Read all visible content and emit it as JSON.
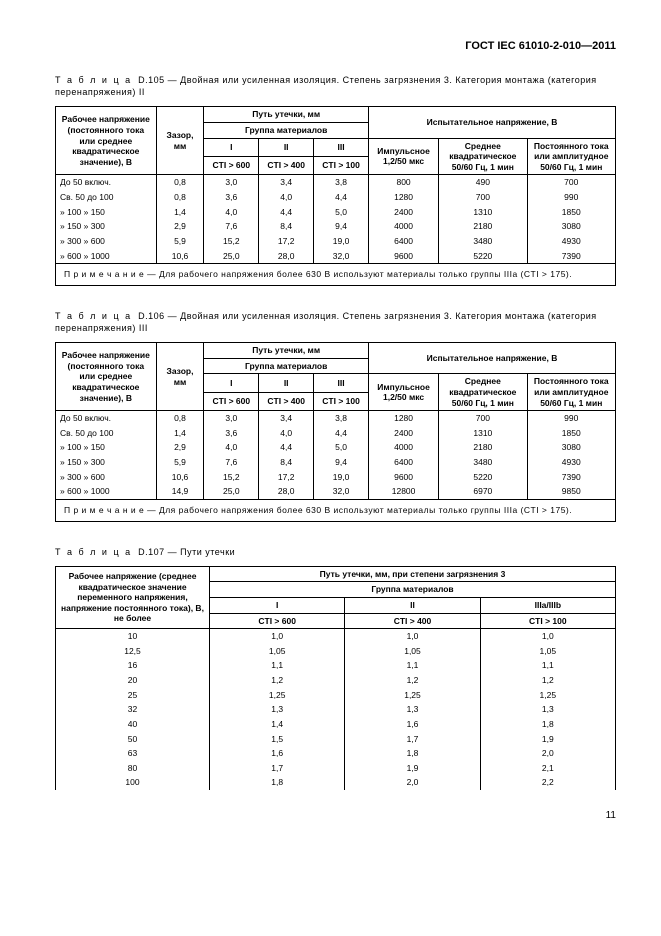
{
  "header": "ГОСТ IEC 61010-2-010—2011",
  "page_number": "11",
  "tables": {
    "d105": {
      "caption_prefix": "Т а б л и ц а",
      "caption_num": "D.105",
      "caption_text": "— Двойная или усиленная изоляция. Степень загрязнения 3. Категория монтажа (категория перенапряжения) II",
      "col_voltage": "Рабочее напряжение (постоянного тока или среднее квадратическое значение), В",
      "col_gap": "Зазор, мм",
      "col_creep": "Путь утечки, мм",
      "col_matgroup": "Группа материалов",
      "col_test": "Испытательное напряжение, В",
      "col_I": "I",
      "col_II": "II",
      "col_III": "III",
      "col_cti600": "CTI > 600",
      "col_cti400": "CTI > 400",
      "col_cti100": "CTI > 100",
      "col_impulse": "Импульсное 1,2/50 мкс",
      "col_rms": "Среднее квадратическое 50/60 Гц, 1 мин",
      "col_dc": "Постоянного тока или амплитудное 50/60 Гц, 1 мин",
      "rows": [
        {
          "v": "До  50 включ.",
          "g": "0,8",
          "c1": "3,0",
          "c2": "3,4",
          "c3": "3,8",
          "imp": "800",
          "rms": "490",
          "dc": "700"
        },
        {
          "v": "Св. 50 до 100",
          "g": "0,8",
          "c1": "3,6",
          "c2": "4,0",
          "c3": "4,4",
          "imp": "1280",
          "rms": "700",
          "dc": "990"
        },
        {
          "v": "» 100   »   150",
          "g": "1,4",
          "c1": "4,0",
          "c2": "4,4",
          "c3": "5,0",
          "imp": "2400",
          "rms": "1310",
          "dc": "1850"
        },
        {
          "v": "» 150   »   300",
          "g": "2,9",
          "c1": "7,6",
          "c2": "8,4",
          "c3": "9,4",
          "imp": "4000",
          "rms": "2180",
          "dc": "3080"
        },
        {
          "v": "» 300   »   600",
          "g": "5,9",
          "c1": "15,2",
          "c2": "17,2",
          "c3": "19,0",
          "imp": "6400",
          "rms": "3480",
          "dc": "4930"
        },
        {
          "v": "» 600   » 1000",
          "g": "10,6",
          "c1": "25,0",
          "c2": "28,0",
          "c3": "32,0",
          "imp": "9600",
          "rms": "5220",
          "dc": "7390"
        }
      ],
      "note": "П р и м е ч а н и е — Для рабочего напряжения более 630 В используют материалы только группы IIIa (CTI > 175)."
    },
    "d106": {
      "caption_prefix": "Т а б л и ц а",
      "caption_num": "D.106",
      "caption_text": "— Двойная или усиленная изоляция. Степень загрязнения 3. Категория монтажа (категория перенапряжения) III",
      "rows": [
        {
          "v": "До  50 включ.",
          "g": "0,8",
          "c1": "3,0",
          "c2": "3,4",
          "c3": "3,8",
          "imp": "1280",
          "rms": "700",
          "dc": "990"
        },
        {
          "v": "Св. 50 до 100",
          "g": "1,4",
          "c1": "3,6",
          "c2": "4,0",
          "c3": "4,4",
          "imp": "2400",
          "rms": "1310",
          "dc": "1850"
        },
        {
          "v": "» 100   »   150",
          "g": "2,9",
          "c1": "4,0",
          "c2": "4,4",
          "c3": "5,0",
          "imp": "4000",
          "rms": "2180",
          "dc": "3080"
        },
        {
          "v": "» 150   »   300",
          "g": "5,9",
          "c1": "7,6",
          "c2": "8,4",
          "c3": "9,4",
          "imp": "6400",
          "rms": "3480",
          "dc": "4930"
        },
        {
          "v": "» 300   »   600",
          "g": "10,6",
          "c1": "15,2",
          "c2": "17,2",
          "c3": "19,0",
          "imp": "9600",
          "rms": "5220",
          "dc": "7390"
        },
        {
          "v": "» 600   » 1000",
          "g": "14,9",
          "c1": "25,0",
          "c2": "28,0",
          "c3": "32,0",
          "imp": "12800",
          "rms": "6970",
          "dc": "9850"
        }
      ],
      "note": "П р и м е ч а н и е — Для рабочего напряжения более 630 В используют материалы только группы IIIa (CTI > 175)."
    },
    "d107": {
      "caption_prefix": "Т а б л и ц а",
      "caption_num": "D.107",
      "caption_text": "— Пути утечки",
      "col_voltage": "Рабочее напряжение (среднее квадратическое значение переменного напряжения, напряжение постоянного тока), В, не более",
      "col_creep": "Путь утечки, мм, при степени загрязнения 3",
      "col_matgroup": "Группа материалов",
      "col_I": "I",
      "col_II": "II",
      "col_III": "IIIa/IIIb",
      "col_cti600": "CTI > 600",
      "col_cti400": "CTI > 400",
      "col_cti100": "CTI > 100",
      "rows": [
        {
          "v": "10",
          "c1": "1,0",
          "c2": "1,0",
          "c3": "1,0"
        },
        {
          "v": "12,5",
          "c1": "1,05",
          "c2": "1,05",
          "c3": "1,05"
        },
        {
          "v": "16",
          "c1": "1,1",
          "c2": "1,1",
          "c3": "1,1"
        },
        {
          "v": "20",
          "c1": "1,2",
          "c2": "1,2",
          "c3": "1,2"
        },
        {
          "v": "25",
          "c1": "1,25",
          "c2": "1,25",
          "c3": "1,25"
        },
        {
          "v": "32",
          "c1": "1,3",
          "c2": "1,3",
          "c3": "1,3"
        },
        {
          "v": "40",
          "c1": "1,4",
          "c2": "1,6",
          "c3": "1,8"
        },
        {
          "v": "50",
          "c1": "1,5",
          "c2": "1,7",
          "c3": "1,9"
        },
        {
          "v": "63",
          "c1": "1,6",
          "c2": "1,8",
          "c3": "2,0"
        },
        {
          "v": "80",
          "c1": "1,7",
          "c2": "1,9",
          "c3": "2,1"
        },
        {
          "v": "100",
          "c1": "1,8",
          "c2": "2,0",
          "c3": "2,2"
        }
      ]
    }
  }
}
